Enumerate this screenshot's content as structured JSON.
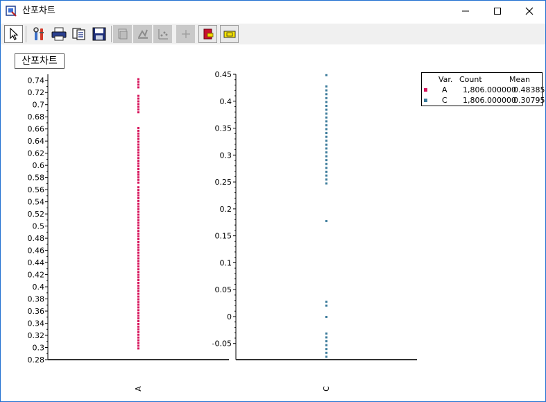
{
  "window": {
    "title": "산포차트",
    "accent_color": "#1f6fd1",
    "controls": {
      "minimize_icon": "minimize-icon",
      "maximize_icon": "maximize-icon",
      "close_icon": "close-icon"
    }
  },
  "toolbar": {
    "buttons": [
      {
        "name": "select-pointer",
        "icon": "pointer-icon",
        "state": "pressed"
      },
      {
        "name": "properties",
        "icon": "tools-icon",
        "state": "enabled"
      },
      {
        "name": "print",
        "icon": "printer-icon",
        "state": "enabled"
      },
      {
        "name": "copy",
        "icon": "copy-icon",
        "state": "enabled"
      },
      {
        "name": "save",
        "icon": "floppy-icon",
        "state": "enabled"
      },
      {
        "name": "tool-disabled-1",
        "icon": "layers-icon",
        "state": "disabled"
      },
      {
        "name": "tool-disabled-2",
        "icon": "chart-tool-icon",
        "state": "disabled"
      },
      {
        "name": "tool-disabled-3",
        "icon": "scatter-tool-icon",
        "state": "disabled"
      },
      {
        "name": "tool-disabled-4",
        "icon": "crosshair-icon",
        "state": "disabled"
      },
      {
        "name": "tool-red",
        "icon": "red-marker-icon",
        "state": "enabled"
      },
      {
        "name": "tool-yellow",
        "icon": "yellow-label-icon",
        "state": "enabled"
      }
    ]
  },
  "chart_label": "산포차트",
  "legend": {
    "headers": {
      "var": "Var.",
      "count": "Count",
      "mean": "Mean"
    },
    "rows": [
      {
        "var": "A",
        "count": "1,806.000000",
        "mean": "0.48385",
        "color": "#d6135a"
      },
      {
        "var": "C",
        "count": "1,806.000000",
        "mean": "0.30795",
        "color": "#3a7a9a"
      }
    ]
  },
  "chart_data": [
    {
      "type": "scatter",
      "series_name": "A",
      "xlabel": "A",
      "color": "#d6135a",
      "ylim": [
        0.28,
        0.75
      ],
      "yticks": [
        "0.28",
        "0.3",
        "0.32",
        "0.34",
        "0.36",
        "0.38",
        "0.4",
        "0.42",
        "0.44",
        "0.46",
        "0.48",
        "0.5",
        "0.52",
        "0.54",
        "0.56",
        "0.58",
        "0.6",
        "0.62",
        "0.64",
        "0.66",
        "0.68",
        "0.7",
        "0.72",
        "0.74"
      ],
      "y_segments": [
        [
          0.299,
          0.567
        ],
        [
          0.572,
          0.665
        ],
        [
          0.688,
          0.719
        ],
        [
          0.729,
          0.746
        ]
      ],
      "y_isolated": [
        0.586
      ],
      "y_step": 0.0045
    },
    {
      "type": "scatter",
      "series_name": "C",
      "xlabel": "C",
      "color": "#3a7a9a",
      "ylim": [
        -0.08,
        0.45
      ],
      "yticks": [
        "-0.05",
        "0",
        "0.05",
        "0.1",
        "0.15",
        "0.2",
        "0.25",
        "0.3",
        "0.35",
        "0.4",
        "0.45"
      ],
      "y_segments": [
        [
          0.248,
          0.432
        ],
        [
          0.021,
          0.03
        ],
        [
          -0.074,
          -0.03
        ]
      ],
      "y_isolated": [
        0.449,
        0.178,
        0.0
      ],
      "y_step": 0.0072
    }
  ]
}
